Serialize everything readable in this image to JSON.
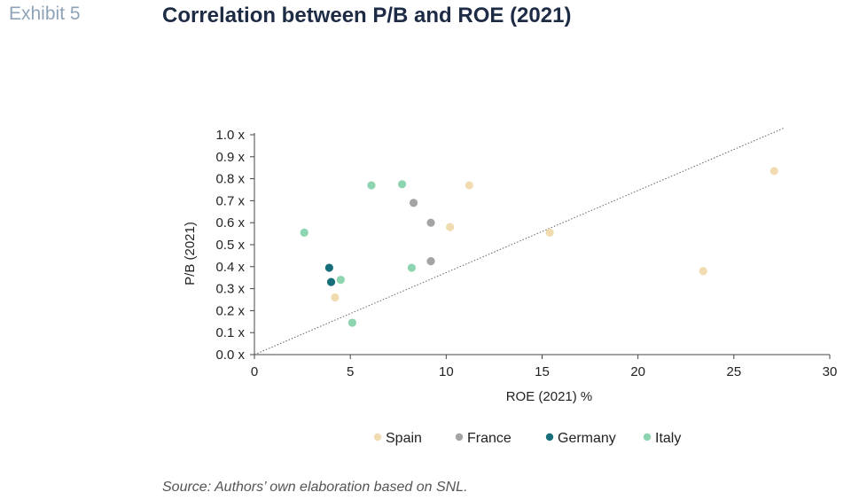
{
  "header": {
    "exhibit_label": "Exhibit 5",
    "title": "Correlation between P/B and ROE (2021)"
  },
  "footer": {
    "source": "Source: Authors’ own elaboration based on SNL."
  },
  "chart_data": {
    "type": "scatter",
    "title": "Correlation between P/B and ROE (2021)",
    "xlabel": "ROE  (2021)  %",
    "ylabel": "P/B (2021)",
    "xlim": [
      0,
      30
    ],
    "ylim": [
      0,
      1.0
    ],
    "x_ticks": [
      0,
      5,
      10,
      15,
      20,
      25,
      30
    ],
    "x_tick_labels": [
      "0",
      "5",
      "10",
      "15",
      "20",
      "25",
      "30"
    ],
    "y_ticks": [
      0,
      0.1,
      0.2,
      0.3,
      0.4,
      0.5,
      0.6,
      0.7,
      0.8,
      0.9,
      1.0
    ],
    "y_tick_labels": [
      "0.0 x",
      "0.1 x",
      "0.2 x",
      "0.3 x",
      "0.4 x",
      "0.5 x",
      "0.6 x",
      "0.7 x",
      "0.8 x",
      "0.9 x",
      "1.0 x"
    ],
    "grid": false,
    "legend_position": "bottom",
    "trendline": {
      "style": "dotted",
      "color": "#666666",
      "x": [
        0,
        27.6
      ],
      "y": [
        0,
        1.03
      ]
    },
    "series": [
      {
        "name": "Spain",
        "color": "#f1dcb1",
        "points": [
          {
            "x": 4.2,
            "y": 0.26
          },
          {
            "x": 10.2,
            "y": 0.58
          },
          {
            "x": 11.2,
            "y": 0.77
          },
          {
            "x": 15.4,
            "y": 0.555
          },
          {
            "x": 23.4,
            "y": 0.38
          },
          {
            "x": 27.1,
            "y": 0.835
          }
        ]
      },
      {
        "name": "France",
        "color": "#a4a4a4",
        "points": [
          {
            "x": 8.3,
            "y": 0.69
          },
          {
            "x": 9.2,
            "y": 0.6
          },
          {
            "x": 9.2,
            "y": 0.425
          }
        ]
      },
      {
        "name": "Germany",
        "color": "#166e7a",
        "points": [
          {
            "x": 3.9,
            "y": 0.395
          },
          {
            "x": 4.0,
            "y": 0.33
          }
        ]
      },
      {
        "name": "Italy",
        "color": "#8dd4b0",
        "points": [
          {
            "x": 2.6,
            "y": 0.555
          },
          {
            "x": 6.1,
            "y": 0.77
          },
          {
            "x": 7.7,
            "y": 0.775
          },
          {
            "x": 8.2,
            "y": 0.395
          },
          {
            "x": 4.5,
            "y": 0.34
          },
          {
            "x": 5.1,
            "y": 0.145
          }
        ]
      }
    ]
  }
}
